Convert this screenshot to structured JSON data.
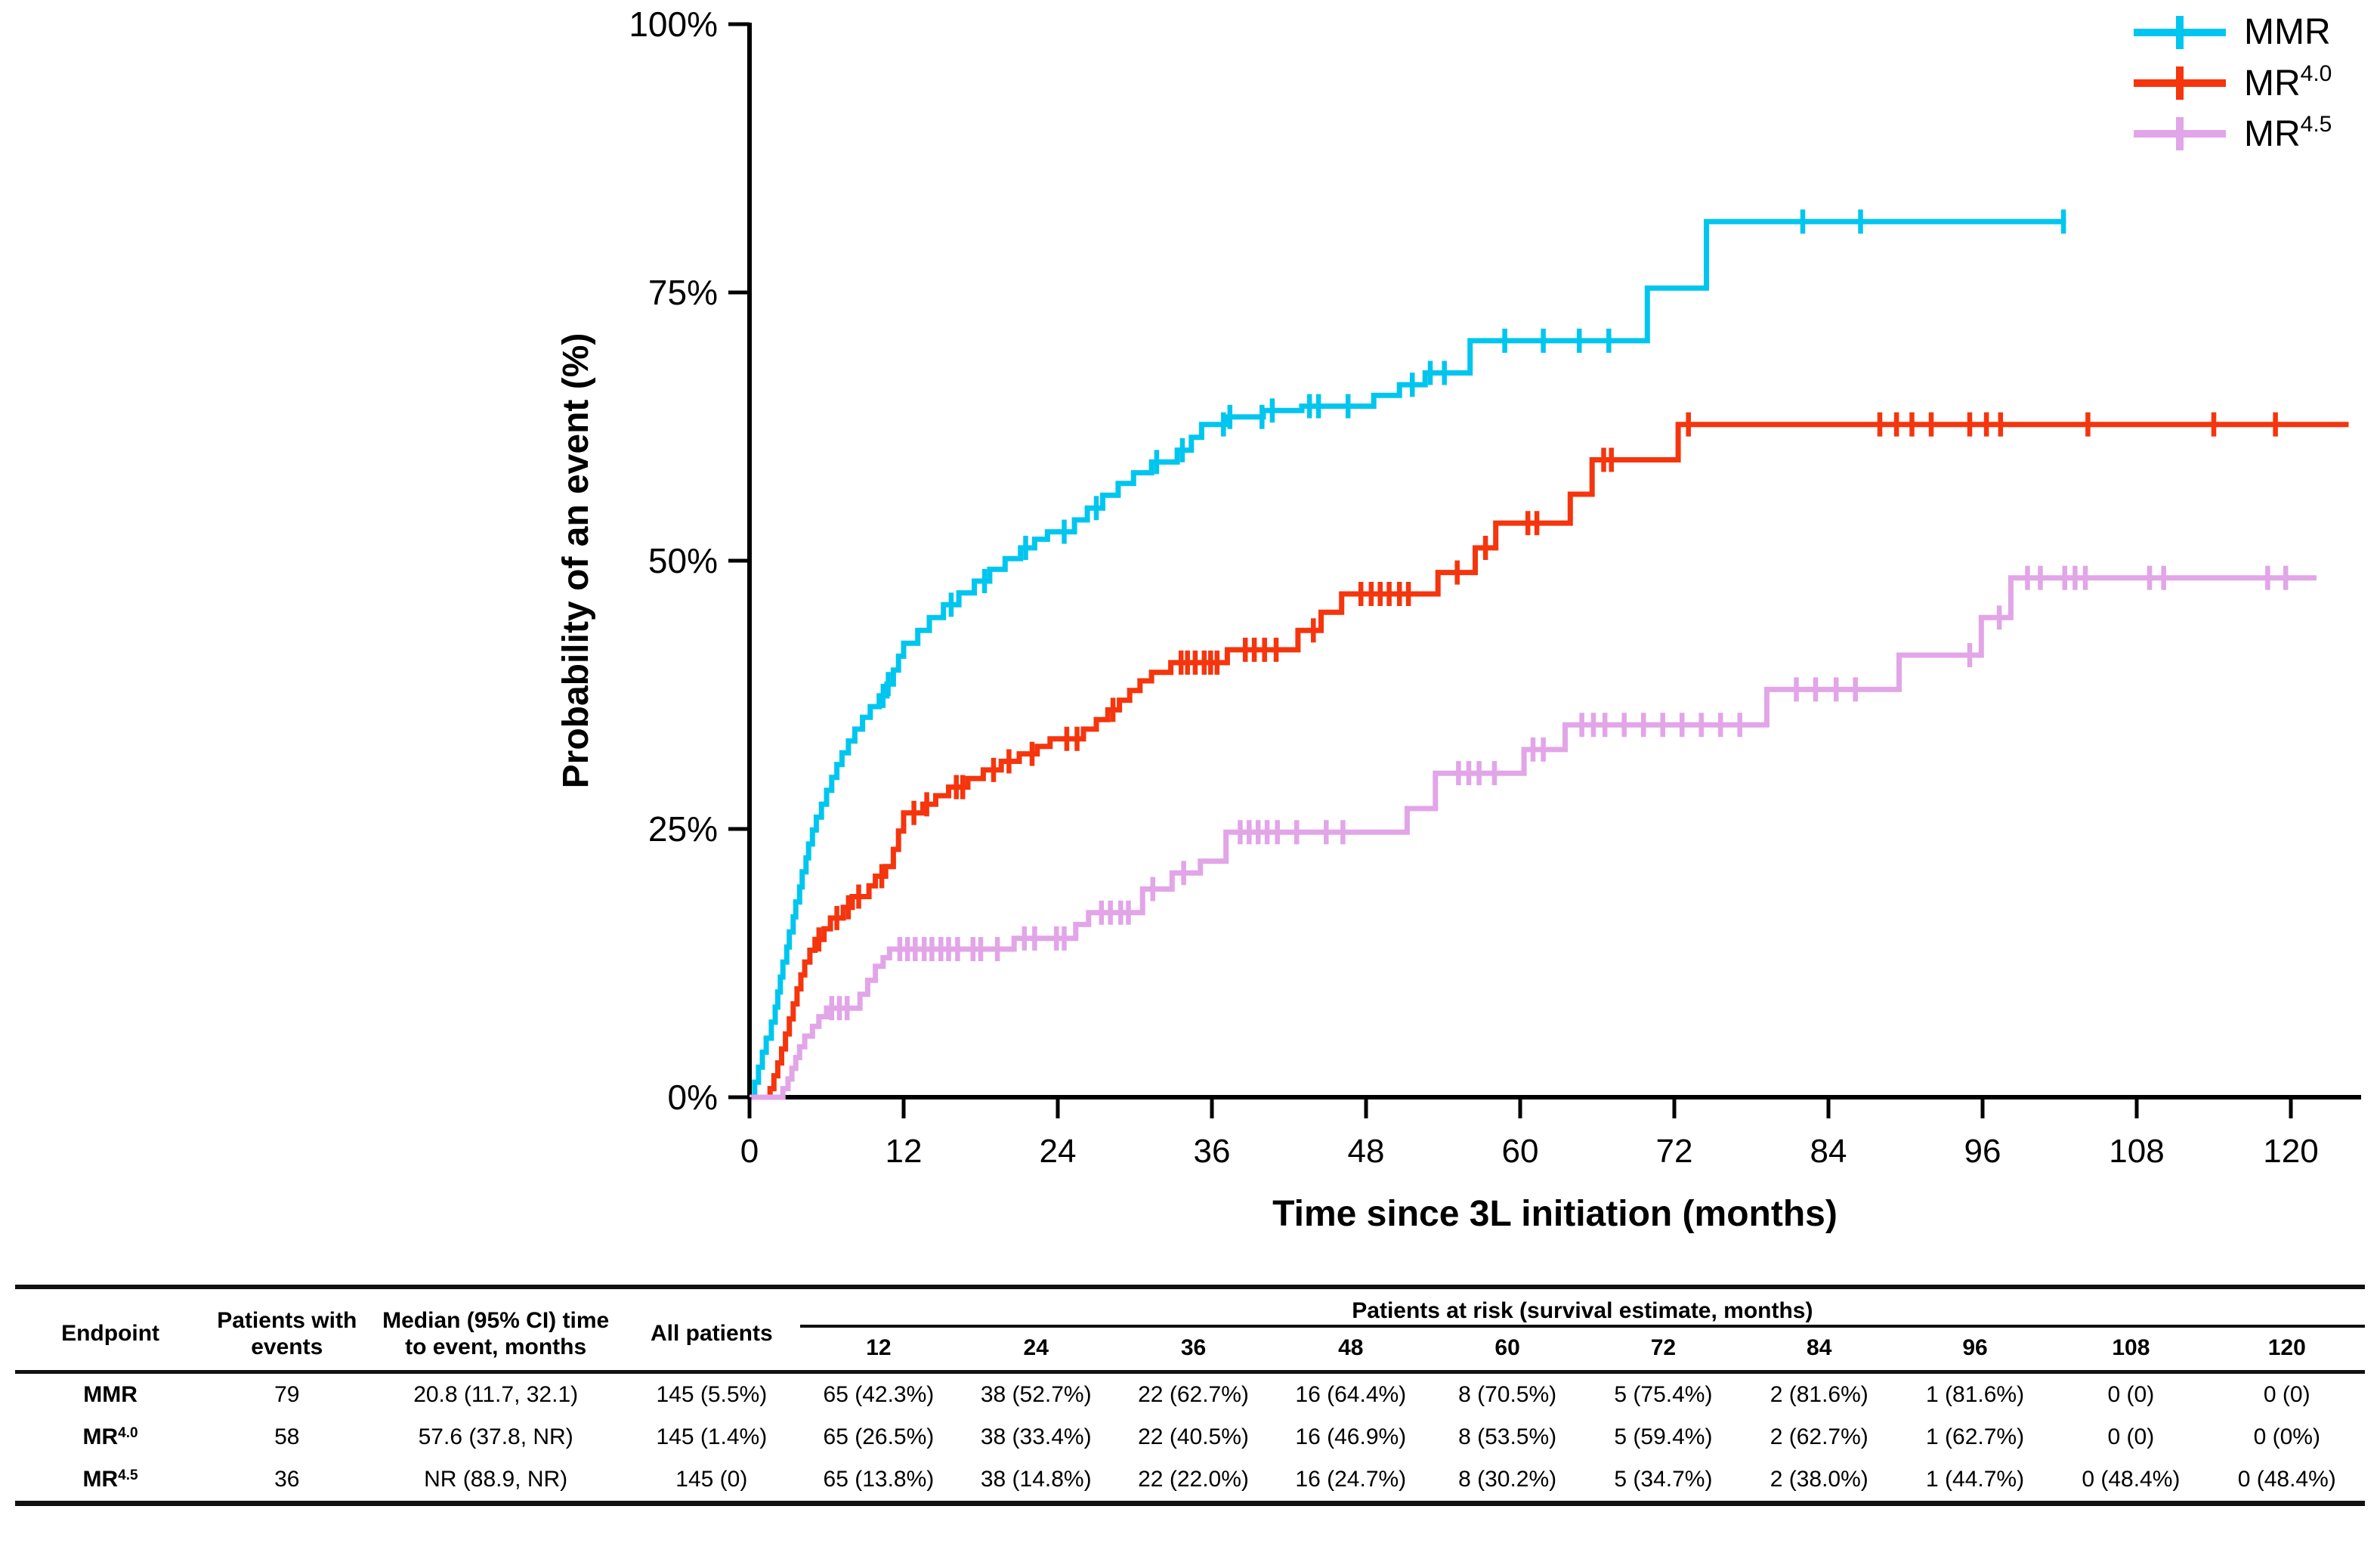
{
  "chart_data": {
    "type": "line",
    "subtype": "kaplan-meier-step",
    "title": "",
    "xlabel": "Time since 3L initiation (months)",
    "ylabel": "Probability of an event (%)",
    "xlim": [
      0,
      125
    ],
    "ylim": [
      0,
      100
    ],
    "grid": false,
    "legend_position": "top-right",
    "x_ticks": [
      0,
      12,
      24,
      36,
      48,
      60,
      72,
      84,
      96,
      108,
      120
    ],
    "y_ticks": [
      {
        "value": 100,
        "label": "100%"
      },
      {
        "value": 75,
        "label": "75%"
      },
      {
        "value": 50,
        "label": "50%"
      },
      {
        "value": 25,
        "label": "25%"
      },
      {
        "value": 0,
        "label": "0%"
      }
    ],
    "series": [
      {
        "name": "MMR",
        "sup": "",
        "color": "#00C6EF",
        "end_month": 102.5,
        "steps": [
          [
            0,
            0
          ],
          [
            0.4,
            1.4
          ],
          [
            0.7,
            2.8
          ],
          [
            1,
            4.2
          ],
          [
            1.3,
            5.5
          ],
          [
            1.7,
            7
          ],
          [
            2,
            8.4
          ],
          [
            2.2,
            9.8
          ],
          [
            2.4,
            11.2
          ],
          [
            2.6,
            12.6
          ],
          [
            2.9,
            14
          ],
          [
            3.1,
            15.4
          ],
          [
            3.4,
            16.8
          ],
          [
            3.6,
            18.2
          ],
          [
            3.9,
            19.6
          ],
          [
            4.1,
            21
          ],
          [
            4.4,
            22.3
          ],
          [
            4.6,
            23.6
          ],
          [
            4.9,
            24.9
          ],
          [
            5.2,
            26.1
          ],
          [
            5.6,
            27.3
          ],
          [
            6,
            28.6
          ],
          [
            6.4,
            29.8
          ],
          [
            6.8,
            31
          ],
          [
            7.2,
            32.1
          ],
          [
            7.7,
            33.2
          ],
          [
            8.2,
            34.3
          ],
          [
            8.8,
            35.4
          ],
          [
            9.4,
            36.4
          ],
          [
            10.1,
            37.4
          ],
          [
            10.7,
            38.5
          ],
          [
            11.2,
            39.8
          ],
          [
            11.6,
            41.1
          ],
          [
            12,
            42.3
          ],
          [
            13.1,
            43.5
          ],
          [
            14,
            44.7
          ],
          [
            15.1,
            45.9
          ],
          [
            16.3,
            47
          ],
          [
            17.5,
            48.1
          ],
          [
            18.7,
            49.2
          ],
          [
            19.9,
            50.2
          ],
          [
            21.1,
            51.2
          ],
          [
            22.2,
            52
          ],
          [
            23.2,
            52.7
          ],
          [
            25.3,
            53.8
          ],
          [
            26.3,
            54.9
          ],
          [
            27.5,
            56.1
          ],
          [
            28.7,
            57.2
          ],
          [
            29.9,
            58.2
          ],
          [
            31.3,
            59.2
          ],
          [
            33.3,
            60.3
          ],
          [
            34.4,
            61.5
          ],
          [
            35.2,
            62.7
          ],
          [
            37,
            63.4
          ],
          [
            40,
            64
          ],
          [
            43,
            64.4
          ],
          [
            48.6,
            65.4
          ],
          [
            50.6,
            66.4
          ],
          [
            52.6,
            67.5
          ],
          [
            56.1,
            70.5
          ],
          [
            69.9,
            75.4
          ],
          [
            74.5,
            81.6
          ]
        ],
        "censor_months": [
          10.4,
          10.8,
          15.7,
          18.3,
          21.5,
          24.5,
          27,
          31.7,
          33.7,
          36.9,
          37.4,
          39.9,
          40.7,
          43.6,
          44.3,
          46.6,
          51.6,
          53,
          54.1,
          58.8,
          61.8,
          64.6,
          66.9,
          82,
          86.5,
          102.3
        ]
      },
      {
        "name": "MR",
        "sup": "4.0",
        "color": "#F5350D",
        "end_month": 124.5,
        "steps": [
          [
            0,
            0
          ],
          [
            1.6,
            0.8
          ],
          [
            1.9,
            2
          ],
          [
            2.2,
            3.2
          ],
          [
            2.5,
            4.5
          ],
          [
            2.8,
            5.9
          ],
          [
            3.1,
            7.3
          ],
          [
            3.4,
            8.7
          ],
          [
            3.7,
            10.1
          ],
          [
            4,
            11.4
          ],
          [
            4.3,
            12.6
          ],
          [
            4.7,
            13.7
          ],
          [
            5.1,
            14.7
          ],
          [
            5.8,
            15.7
          ],
          [
            6.3,
            16.7
          ],
          [
            7.3,
            17.7
          ],
          [
            8,
            18.7
          ],
          [
            9.3,
            19.7
          ],
          [
            9.8,
            20.6
          ],
          [
            10.6,
            21.5
          ],
          [
            11.2,
            23.1
          ],
          [
            11.6,
            24.8
          ],
          [
            12,
            26.5
          ],
          [
            13.5,
            27.3
          ],
          [
            14.5,
            28.1
          ],
          [
            15.5,
            28.9
          ],
          [
            17,
            29.7
          ],
          [
            18.2,
            30.5
          ],
          [
            19.6,
            31.3
          ],
          [
            21,
            32
          ],
          [
            22.4,
            32.7
          ],
          [
            23.4,
            33.4
          ],
          [
            26,
            34.3
          ],
          [
            27,
            35.2
          ],
          [
            27.9,
            36.1
          ],
          [
            28.8,
            37
          ],
          [
            29.6,
            37.9
          ],
          [
            30.4,
            38.8
          ],
          [
            31.3,
            39.6
          ],
          [
            32.8,
            40.5
          ],
          [
            37.2,
            41.7
          ],
          [
            42.7,
            43.5
          ],
          [
            44.5,
            45.2
          ],
          [
            46.1,
            46.9
          ],
          [
            53.6,
            48.9
          ],
          [
            56.5,
            51.2
          ],
          [
            58.1,
            53.5
          ],
          [
            63.9,
            56.2
          ],
          [
            65.6,
            59.4
          ],
          [
            72.3,
            62.7
          ]
        ],
        "censor_months": [
          5.4,
          6.8,
          7.7,
          8.5,
          10.3,
          12.8,
          13.8,
          16.1,
          16.6,
          19,
          20.2,
          22,
          24.7,
          25.5,
          28.3,
          33.6,
          34.1,
          34.7,
          35.4,
          35.9,
          36.4,
          38.6,
          39.3,
          40.1,
          41,
          43.9,
          47.6,
          48.4,
          49.1,
          49.8,
          50.6,
          51.3,
          55.1,
          57.3,
          60.6,
          61.3,
          66.5,
          67.1,
          73.1,
          88,
          89.3,
          90.5,
          92,
          95,
          96.3,
          97.4,
          104.2,
          114,
          118.8
        ]
      },
      {
        "name": "MR",
        "sup": "4.5",
        "color": "#E2A5E8",
        "end_month": 122,
        "steps": [
          [
            0,
            0
          ],
          [
            2.6,
            0.8
          ],
          [
            3,
            1.7
          ],
          [
            3.3,
            2.7
          ],
          [
            3.6,
            3.7
          ],
          [
            3.9,
            4.7
          ],
          [
            4.3,
            5.7
          ],
          [
            4.9,
            6.6
          ],
          [
            5.4,
            7.5
          ],
          [
            6,
            8.3
          ],
          [
            8.6,
            9.6
          ],
          [
            9.2,
            10.9
          ],
          [
            9.8,
            12.2
          ],
          [
            10.4,
            13
          ],
          [
            10.9,
            13.8
          ],
          [
            20.6,
            14.8
          ],
          [
            25.4,
            16.1
          ],
          [
            26.4,
            17.2
          ],
          [
            30.6,
            19.4
          ],
          [
            32.9,
            20.9
          ],
          [
            35.1,
            22
          ],
          [
            37.1,
            24.7
          ],
          [
            51.2,
            26.9
          ],
          [
            53.4,
            30.2
          ],
          [
            60.3,
            32.4
          ],
          [
            63.5,
            34.7
          ],
          [
            79.2,
            38
          ],
          [
            89.5,
            41.2
          ],
          [
            95.9,
            44.7
          ],
          [
            98.2,
            48.4
          ]
        ],
        "censor_months": [
          6.4,
          7,
          7.6,
          11.7,
          12.3,
          12.9,
          13.6,
          14.2,
          14.9,
          15.5,
          16.2,
          17.4,
          18,
          19.3,
          21.4,
          22.2,
          23.9,
          24.5,
          27.4,
          28.1,
          28.9,
          29.5,
          31.4,
          33.8,
          38.2,
          38.9,
          39.6,
          40.3,
          41.1,
          42.6,
          44.9,
          46.2,
          55.2,
          56,
          56.8,
          58,
          61,
          61.8,
          64.8,
          65.7,
          66.6,
          68.1,
          69.6,
          71.1,
          72.6,
          74.1,
          75.6,
          77.1,
          81.5,
          83,
          84.6,
          86.1,
          95,
          97.3,
          99.5,
          100.5,
          102.4,
          103.2,
          104,
          109,
          110.1,
          118.2,
          119.6
        ]
      }
    ]
  },
  "legend": {
    "items": [
      {
        "label": "MMR",
        "sup": "",
        "color": "#00C6EF"
      },
      {
        "label": "MR",
        "sup": "4.0",
        "color": "#F5350D"
      },
      {
        "label": "MR",
        "sup": "4.5",
        "color": "#E2A5E8"
      }
    ]
  },
  "table": {
    "header": {
      "endpoint": "Endpoint",
      "events": "Patients with events",
      "median": "Median (95% CI) time to event, months",
      "all_patients": "All patients",
      "at_risk_title": "Patients at risk (survival estimate, months)",
      "months": [
        "12",
        "24",
        "36",
        "48",
        "60",
        "72",
        "84",
        "96",
        "108",
        "120"
      ]
    },
    "rows": [
      {
        "endpoint": {
          "label": "MMR",
          "sup": ""
        },
        "events": "79",
        "median": "20.8 (11.7, 32.1)",
        "all_patients": "145 (5.5%)",
        "at_risk": [
          "65 (42.3%)",
          "38 (52.7%)",
          "22 (62.7%)",
          "16 (64.4%)",
          "8 (70.5%)",
          "5 (75.4%)",
          "2 (81.6%)",
          "1 (81.6%)",
          "0 (0)",
          "0 (0)"
        ]
      },
      {
        "endpoint": {
          "label": "MR",
          "sup": "4.0"
        },
        "events": "58",
        "median": "57.6 (37.8, NR)",
        "all_patients": "145 (1.4%)",
        "at_risk": [
          "65 (26.5%)",
          "38 (33.4%)",
          "22 (40.5%)",
          "16 (46.9%)",
          "8 (53.5%)",
          "5 (59.4%)",
          "2 (62.7%)",
          "1 (62.7%)",
          "0 (0)",
          "0 (0%)"
        ]
      },
      {
        "endpoint": {
          "label": "MR",
          "sup": "4.5"
        },
        "events": "36",
        "median": "NR (88.9, NR)",
        "all_patients": "145 (0)",
        "at_risk": [
          "65 (13.8%)",
          "38 (14.8%)",
          "22 (22.0%)",
          "16 (24.7%)",
          "8 (30.2%)",
          "5 (34.7%)",
          "2 (38.0%)",
          "1 (44.7%)",
          "0 (48.4%)",
          "0 (48.4%)"
        ]
      }
    ]
  }
}
